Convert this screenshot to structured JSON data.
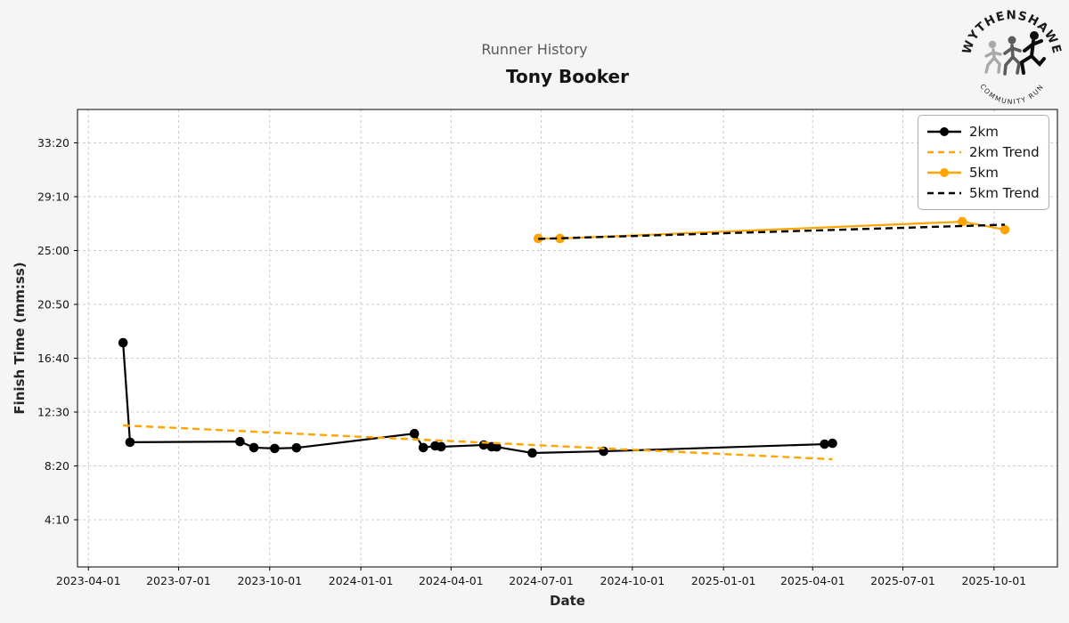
{
  "header": {
    "title": "Runner History",
    "subtitle": "Tony Booker"
  },
  "logo": {
    "top_text": "WYTHENSHAWE",
    "bottom_text": "COMMUNITY RUN"
  },
  "chart_data": {
    "type": "line",
    "title": "Runner History",
    "subtitle": "Tony Booker",
    "xlabel": "Date",
    "ylabel": "Finish Time (mm:ss)",
    "grid": true,
    "legend_position": "upper right",
    "x_range": [
      "2023-03-21",
      "2025-12-04"
    ],
    "y_range_seconds": [
      31,
      2155
    ],
    "x_ticks": [
      "2023-04-01",
      "2023-07-01",
      "2023-10-01",
      "2024-01-01",
      "2024-04-01",
      "2024-07-01",
      "2024-10-01",
      "2025-01-01",
      "2025-04-01",
      "2025-07-01",
      "2025-10-01"
    ],
    "y_ticks": [
      {
        "seconds": 2000,
        "label": "33:20"
      },
      {
        "seconds": 1750,
        "label": "29:10"
      },
      {
        "seconds": 1500,
        "label": "25:00"
      },
      {
        "seconds": 1250,
        "label": "20:50"
      },
      {
        "seconds": 1000,
        "label": "16:40"
      },
      {
        "seconds": 750,
        "label": "12:30"
      },
      {
        "seconds": 500,
        "label": "8:20"
      },
      {
        "seconds": 250,
        "label": "4:10"
      }
    ],
    "colors": {
      "black": "#000000",
      "orange": "#FFA500"
    },
    "series": [
      {
        "name": "2km",
        "color": "#000000",
        "style": "solid",
        "marker": true,
        "points": [
          {
            "date": "2023-05-06",
            "seconds": 1072,
            "time": "17:52"
          },
          {
            "date": "2023-05-13",
            "seconds": 610,
            "time": "10:10"
          },
          {
            "date": "2023-09-01",
            "seconds": 613,
            "time": "10:13"
          },
          {
            "date": "2023-09-15",
            "seconds": 585,
            "time": "9:45"
          },
          {
            "date": "2023-10-06",
            "seconds": 581,
            "time": "9:41"
          },
          {
            "date": "2023-10-28",
            "seconds": 584,
            "time": "9:44"
          },
          {
            "date": "2024-02-24",
            "seconds": 650,
            "time": "10:50"
          },
          {
            "date": "2024-03-04",
            "seconds": 585,
            "time": "9:45"
          },
          {
            "date": "2024-03-16",
            "seconds": 593,
            "time": "9:53"
          },
          {
            "date": "2024-03-22",
            "seconds": 589,
            "time": "9:49"
          },
          {
            "date": "2024-05-04",
            "seconds": 597,
            "time": "9:57"
          },
          {
            "date": "2024-05-12",
            "seconds": 589,
            "time": "9:49"
          },
          {
            "date": "2024-05-17",
            "seconds": 588,
            "time": "9:48"
          },
          {
            "date": "2024-06-22",
            "seconds": 560,
            "time": "9:20"
          },
          {
            "date": "2024-09-02",
            "seconds": 568,
            "time": "9:28"
          },
          {
            "date": "2025-04-13",
            "seconds": 601,
            "time": "10:01"
          },
          {
            "date": "2025-04-21",
            "seconds": 605,
            "time": "10:05"
          }
        ]
      },
      {
        "name": "2km Trend",
        "color": "#FFA500",
        "style": "dashed",
        "marker": false,
        "points": [
          {
            "date": "2023-05-06",
            "seconds": 688,
            "time": "11:28"
          },
          {
            "date": "2025-04-21",
            "seconds": 531,
            "time": "8:51"
          }
        ]
      },
      {
        "name": "5km",
        "color": "#FFA500",
        "style": "solid",
        "marker": true,
        "points": [
          {
            "date": "2024-06-28",
            "seconds": 1556,
            "time": "25:56"
          },
          {
            "date": "2024-07-20",
            "seconds": 1556,
            "time": "25:56"
          },
          {
            "date": "2025-08-30",
            "seconds": 1634,
            "time": "27:14"
          },
          {
            "date": "2025-10-12",
            "seconds": 1597,
            "time": "26:37"
          }
        ]
      },
      {
        "name": "5km Trend",
        "color": "#000000",
        "style": "dashed",
        "marker": false,
        "points": [
          {
            "date": "2024-06-28",
            "seconds": 1554,
            "time": "25:54"
          },
          {
            "date": "2025-10-12",
            "seconds": 1620,
            "time": "27:00"
          }
        ]
      }
    ]
  }
}
